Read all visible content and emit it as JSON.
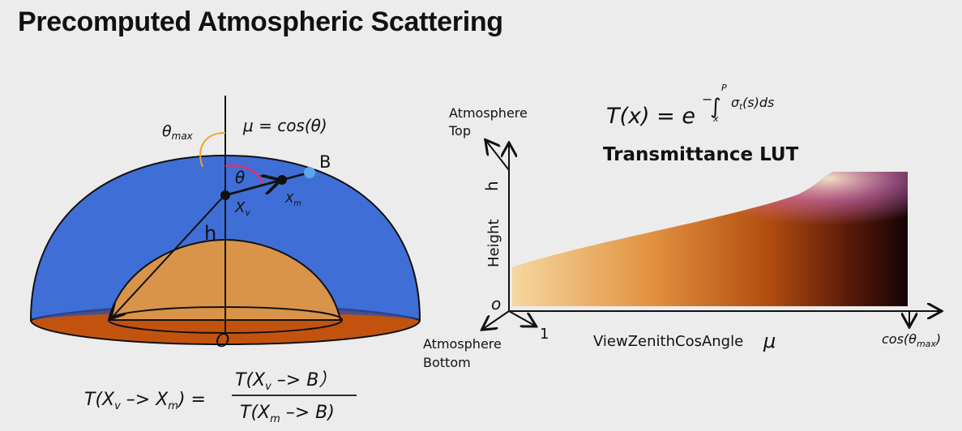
{
  "slide": {
    "title": "Precomputed Atmospheric Scattering"
  },
  "left_diagram": {
    "theta_max": "θ",
    "theta_max_sub": "max",
    "mu_def": "μ = cos(θ)",
    "theta": "θ",
    "point_B": "B",
    "point_xv": "X",
    "point_xv_sub": "v",
    "point_xm": "X",
    "point_xm_sub": "m",
    "height": "h",
    "origin": "O",
    "formula_lhs": "T(X",
    "formula_lhs_sub1": "v",
    "formula_lhs_mid": " –> X",
    "formula_lhs_sub2": "m",
    "formula_lhs_end": ") =",
    "formula_num": "T(X",
    "formula_num_sub": "v",
    "formula_num_end": " –> B）",
    "formula_den": "T(X",
    "formula_den_sub": "m",
    "formula_den_end": " –> B)"
  },
  "right_diagram": {
    "formula_T": "T(x) = e",
    "formula_exp_minus": "−",
    "formula_int_upper": "P",
    "formula_int_lower": "x",
    "formula_integrand": "σ",
    "formula_integrand_sub": "t",
    "formula_integrand_end": "(s)ds",
    "lut_title": "Transmittance LUT",
    "atmosphere_top_1": "Atmosphere",
    "atmosphere_top_2": "Top",
    "atmosphere_bottom_1": "Atmosphere",
    "atmosphere_bottom_2": "Bottom",
    "axis_y_label": "Height",
    "axis_y_top": "h",
    "axis_origin": "o",
    "axis_x_start": "1",
    "axis_x_label": "ViewZenithCosAngle",
    "axis_x_symbol": "μ",
    "axis_x_end": "cos(θ",
    "axis_x_end_sub": "max",
    "axis_x_end_close": ")"
  },
  "colors": {
    "sky_blue": "#3f6fd6",
    "planet_orange": "#d9944a",
    "ground_rim": "#c2530f",
    "theta_arc": "#e0306a",
    "theta_max_arc": "#f0a030",
    "point_b": "#5aa8e8"
  }
}
